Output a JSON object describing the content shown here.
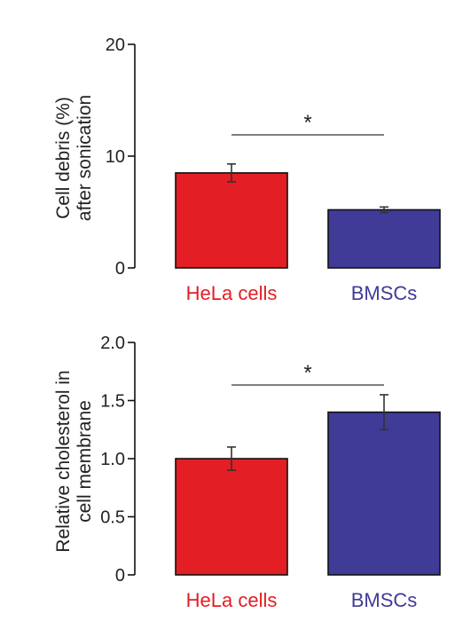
{
  "chart_data": [
    {
      "type": "bar",
      "ylabel_lines": [
        "Cell debris (%)",
        "after sonication"
      ],
      "categories": [
        "HeLa cells",
        "BMSCs"
      ],
      "values": [
        8.5,
        5.2
      ],
      "errors": [
        0.8,
        0.25
      ],
      "ylim": [
        0,
        20
      ],
      "yticks": [
        0,
        10,
        20
      ],
      "ytick_labels": [
        "0",
        "10",
        "20"
      ],
      "significance": "*",
      "colors": [
        "#e31e24",
        "#3f3b97"
      ],
      "category_colors": [
        "#e31e24",
        "#3f3b97"
      ]
    },
    {
      "type": "bar",
      "ylabel_lines": [
        "Relative cholesterol in",
        "cell membrane"
      ],
      "categories": [
        "HeLa cells",
        "BMSCs"
      ],
      "values": [
        1.0,
        1.4
      ],
      "errors": [
        0.1,
        0.15
      ],
      "ylim": [
        0,
        2.0
      ],
      "yticks": [
        0,
        0.5,
        1.0,
        1.5,
        2.0
      ],
      "ytick_labels": [
        "0",
        "0.5",
        "1.0",
        "1.5",
        "2.0"
      ],
      "significance": "*",
      "colors": [
        "#e31e24",
        "#3f3b97"
      ],
      "category_colors": [
        "#e31e24",
        "#3f3b97"
      ]
    }
  ]
}
